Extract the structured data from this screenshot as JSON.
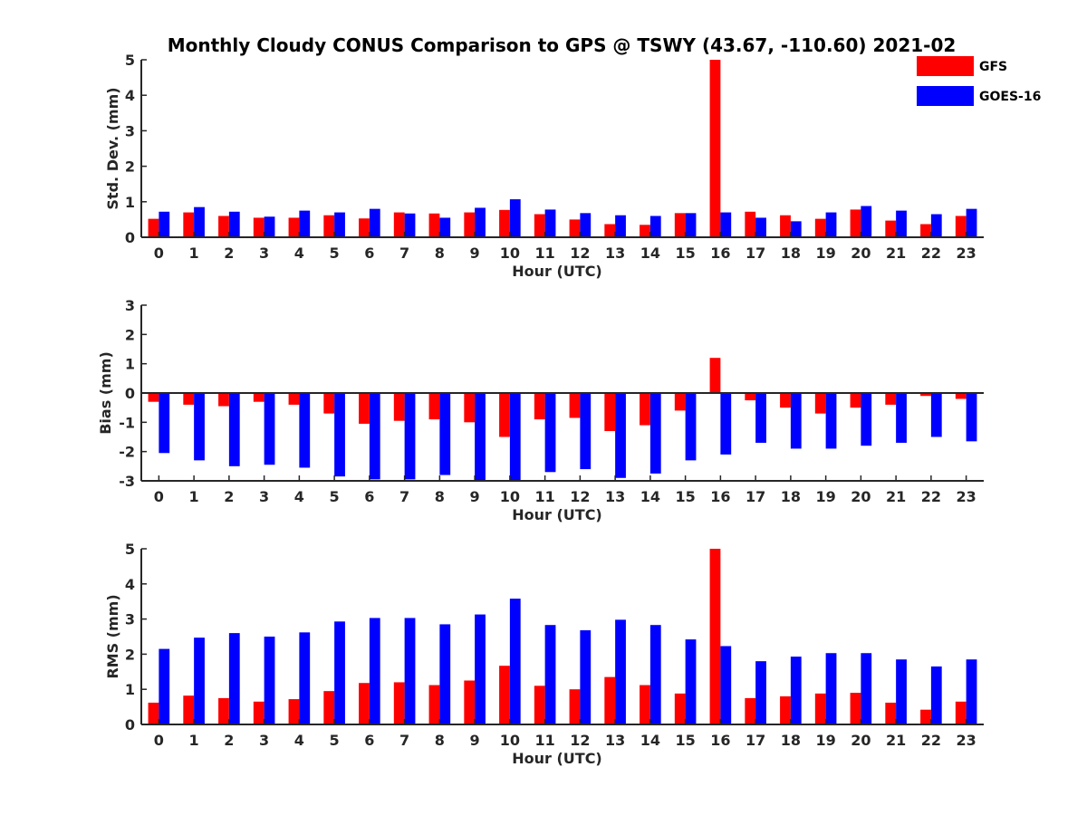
{
  "chart_data": {
    "type": "bar",
    "title": "Monthly Cloudy CONUS Comparison to GPS @ TSWY (43.67, -110.60) 2021-02",
    "categories": [
      "0",
      "1",
      "2",
      "3",
      "4",
      "5",
      "6",
      "7",
      "8",
      "9",
      "10",
      "11",
      "12",
      "13",
      "14",
      "15",
      "16",
      "17",
      "18",
      "19",
      "20",
      "21",
      "22",
      "23"
    ],
    "legend": {
      "location": "top-right",
      "entries": [
        "GFS",
        "GOES-16"
      ]
    },
    "colors": {
      "GFS": "#ff0000",
      "GOES-16": "#0000ff",
      "axis": "#262626"
    },
    "panels": [
      {
        "id": "stddev",
        "xlabel": "Hour (UTC)",
        "ylabel": "Std. Dev. (mm)",
        "ylim": [
          0,
          5
        ],
        "yticks": [
          0,
          1,
          2,
          3,
          4,
          5
        ],
        "series": [
          {
            "name": "GFS",
            "values": [
              0.52,
              0.7,
              0.6,
              0.55,
              0.55,
              0.62,
              0.53,
              0.7,
              0.67,
              0.7,
              0.77,
              0.65,
              0.5,
              0.37,
              0.35,
              0.68,
              5.0,
              0.72,
              0.62,
              0.52,
              0.78,
              0.47,
              0.37,
              0.6
            ]
          },
          {
            "name": "GOES-16",
            "values": [
              0.72,
              0.85,
              0.72,
              0.58,
              0.75,
              0.7,
              0.8,
              0.67,
              0.55,
              0.83,
              1.07,
              0.78,
              0.68,
              0.62,
              0.6,
              0.68,
              0.7,
              0.55,
              0.45,
              0.7,
              0.88,
              0.75,
              0.65,
              0.8
            ]
          }
        ]
      },
      {
        "id": "bias",
        "xlabel": "Hour (UTC)",
        "ylabel": "Bias (mm)",
        "ylim": [
          -3,
          3
        ],
        "yticks": [
          -3,
          -2,
          -1,
          0,
          1,
          2,
          3
        ],
        "series": [
          {
            "name": "GFS",
            "values": [
              -0.3,
              -0.4,
              -0.45,
              -0.3,
              -0.4,
              -0.7,
              -1.05,
              -0.95,
              -0.9,
              -1.0,
              -1.5,
              -0.9,
              -0.85,
              -1.3,
              -1.1,
              -0.6,
              1.2,
              -0.25,
              -0.5,
              -0.7,
              -0.5,
              -0.4,
              -0.1,
              -0.2
            ]
          },
          {
            "name": "GOES-16",
            "values": [
              -2.05,
              -2.3,
              -2.5,
              -2.45,
              -2.55,
              -2.85,
              -2.95,
              -2.95,
              -2.8,
              -3.0,
              -3.0,
              -2.7,
              -2.6,
              -2.9,
              -2.75,
              -2.3,
              -2.1,
              -1.7,
              -1.9,
              -1.9,
              -1.8,
              -1.7,
              -1.5,
              -1.65
            ]
          }
        ]
      },
      {
        "id": "rms",
        "xlabel": "Hour (UTC)",
        "ylabel": "RMS (mm)",
        "ylim": [
          0,
          5
        ],
        "yticks": [
          0,
          1,
          2,
          3,
          4,
          5
        ],
        "series": [
          {
            "name": "GFS",
            "values": [
              0.62,
              0.82,
              0.75,
              0.65,
              0.72,
              0.95,
              1.18,
              1.2,
              1.12,
              1.25,
              1.67,
              1.1,
              1.0,
              1.35,
              1.12,
              0.88,
              5.0,
              0.75,
              0.8,
              0.88,
              0.9,
              0.62,
              0.42,
              0.65
            ]
          },
          {
            "name": "GOES-16",
            "values": [
              2.15,
              2.47,
              2.6,
              2.5,
              2.62,
              2.93,
              3.03,
              3.03,
              2.85,
              3.13,
              3.58,
              2.83,
              2.68,
              2.98,
              2.83,
              2.42,
              2.23,
              1.8,
              1.93,
              2.03,
              2.03,
              1.85,
              1.65,
              1.85
            ]
          }
        ]
      }
    ]
  }
}
